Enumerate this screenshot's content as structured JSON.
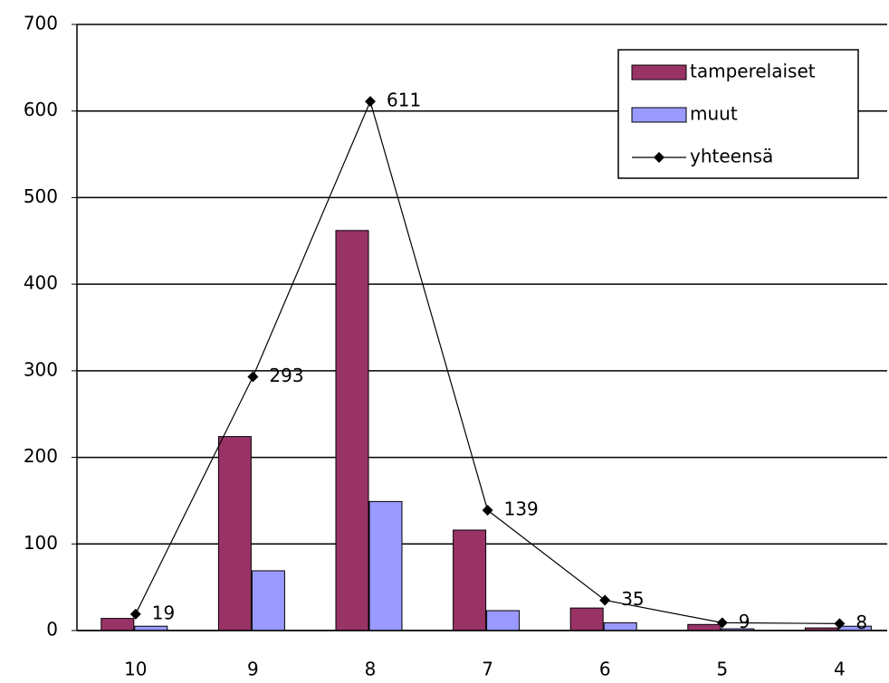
{
  "chart_data": {
    "type": "bar",
    "categories": [
      "10",
      "9",
      "8",
      "7",
      "6",
      "5",
      "4"
    ],
    "series": [
      {
        "name": "tamperelaiset",
        "type": "bar",
        "color": "#993366",
        "values": [
          14,
          224,
          462,
          116,
          26,
          7,
          3
        ]
      },
      {
        "name": "muut",
        "type": "bar",
        "color": "#9999ff",
        "values": [
          5,
          69,
          149,
          23,
          9,
          2,
          5
        ]
      },
      {
        "name": "yhteensä",
        "type": "line",
        "color": "#000000",
        "values": [
          19,
          293,
          611,
          139,
          35,
          9,
          8
        ]
      }
    ],
    "ylim": [
      0,
      700
    ],
    "yticks": [
      0,
      100,
      200,
      300,
      400,
      500,
      600,
      700
    ],
    "grid": true,
    "legend": "top-right"
  }
}
